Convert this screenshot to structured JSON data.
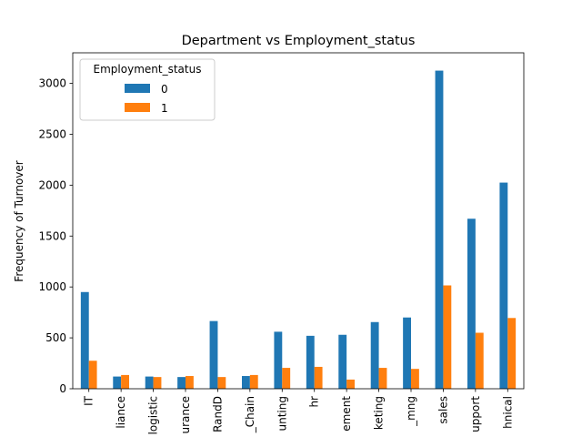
{
  "chart_data": {
    "type": "bar",
    "title": "Department vs Employment_status",
    "xlabel": "",
    "ylabel": "Frequency of Turnover",
    "ylim": [
      0,
      3300
    ],
    "yticks": [
      0,
      500,
      1000,
      1500,
      2000,
      2500,
      3000
    ],
    "categories": [
      "IT",
      "liance",
      "logistic",
      "urance",
      "RandD",
      "_Chain",
      "unting",
      "hr",
      "ement",
      "keting",
      "_mng",
      "sales",
      "upport",
      "hnical"
    ],
    "series": [
      {
        "name": "0",
        "color": "#1f77b4",
        "values": [
          950,
          120,
          120,
          115,
          665,
          125,
          560,
          520,
          530,
          655,
          700,
          3125,
          1670,
          2025
        ]
      },
      {
        "name": "1",
        "color": "#ff7f0e",
        "values": [
          275,
          135,
          115,
          125,
          115,
          135,
          205,
          215,
          90,
          205,
          195,
          1015,
          550,
          695
        ]
      }
    ],
    "legend": {
      "title": "Employment_status",
      "position": "top-left"
    },
    "grid": false
  }
}
